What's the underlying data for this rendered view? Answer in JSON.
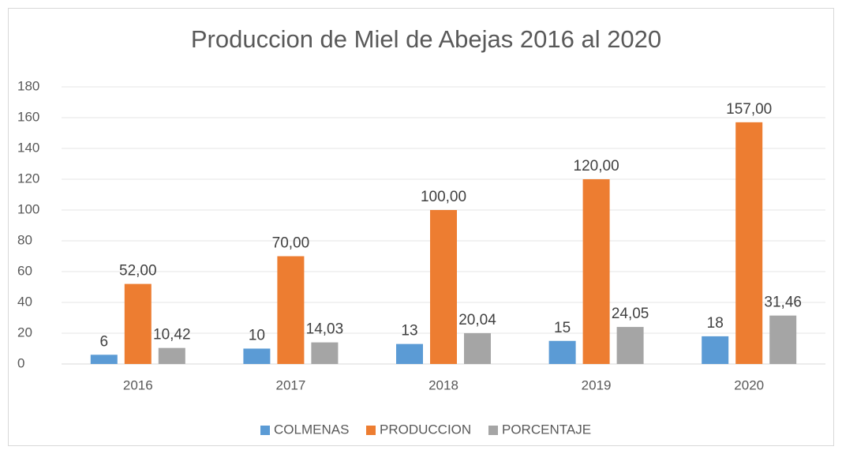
{
  "chart_data": {
    "type": "bar",
    "title": "Produccion de Miel de Abejas 2016 al 2020",
    "categories": [
      "2016",
      "2017",
      "2018",
      "2019",
      "2020"
    ],
    "series": [
      {
        "name": "COLMENAS",
        "color": "#5b9bd5",
        "values": [
          6,
          10,
          13,
          15,
          18
        ]
      },
      {
        "name": "PRODUCCION",
        "color": "#ed7d31",
        "values": [
          52,
          70,
          100,
          120,
          157
        ],
        "value_labels": [
          "52,00",
          "70,00",
          "100,00",
          "120,00",
          "157,00"
        ]
      },
      {
        "name": "PORCENTAJE",
        "color": "#a5a5a5",
        "values": [
          10.42,
          14.03,
          20.04,
          24.05,
          31.46
        ],
        "value_labels": [
          "10,42",
          "14,03",
          "20,04",
          "24,05",
          "31,46"
        ]
      }
    ],
    "ylim": [
      0,
      180
    ],
    "yticks": [
      0,
      20,
      40,
      60,
      80,
      100,
      120,
      140,
      160,
      180
    ],
    "grid": true,
    "legend": "bottom"
  }
}
